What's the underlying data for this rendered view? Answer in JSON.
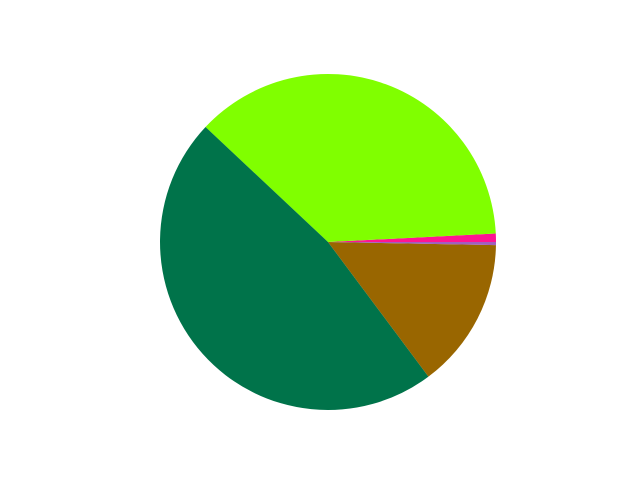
{
  "chart_data": {
    "type": "pie",
    "title": "",
    "start_angle_deg": 0,
    "direction": "counterclockwise",
    "slices": [
      {
        "value": 0.8,
        "color": "#ff1493"
      },
      {
        "value": 37.2,
        "color": "#80ff00"
      },
      {
        "value": 47.2,
        "color": "#00734a"
      },
      {
        "value": 14.5,
        "color": "#996600"
      },
      {
        "value": 0.3,
        "color": "#a05fc0"
      }
    ],
    "legend": "none",
    "labels_shown": false
  }
}
